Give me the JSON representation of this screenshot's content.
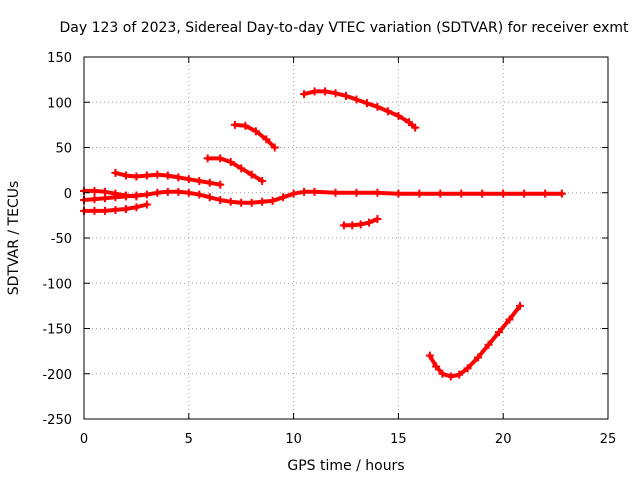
{
  "chart_data": {
    "type": "scatter",
    "title": "Day 123 of 2023, Sidereal Day-to-day VTEC variation (SDTVAR) for receiver exmt",
    "xlabel": "GPS time / hours",
    "ylabel": "SDTVAR / TECUs",
    "xlim": [
      0,
      25
    ],
    "ylim": [
      -250,
      150
    ],
    "x_ticks": [
      "0",
      "5",
      "10",
      "15",
      "20",
      "25"
    ],
    "y_ticks": [
      "150",
      "100",
      "50",
      "0",
      "-50",
      "-100",
      "-150",
      "-200",
      "-250"
    ],
    "x_tick_values": [
      0,
      5,
      10,
      15,
      20,
      25
    ],
    "y_tick_values": [
      150,
      100,
      50,
      0,
      -50,
      -100,
      -150,
      -200,
      -250
    ],
    "grid": true,
    "color": "#ff0000",
    "series": [
      {
        "x": [
          0,
          0.5,
          1,
          1.5,
          2,
          2.5
        ],
        "y": [
          2,
          2,
          1,
          -1,
          -3,
          -4
        ]
      },
      {
        "x": [
          0,
          0.5,
          1,
          1.5,
          2,
          2.5,
          3,
          3.5,
          4,
          4.5,
          5,
          5.5,
          6,
          6.5,
          7,
          7.5,
          8,
          8.5,
          9,
          9.5,
          10,
          10.5,
          11,
          12,
          13,
          14,
          15,
          16,
          17,
          18,
          19,
          20,
          21,
          22,
          22.8
        ],
        "y": [
          -8,
          -7,
          -6,
          -5,
          -4,
          -3,
          -2,
          0,
          1,
          1,
          0,
          -2,
          -5,
          -8,
          -10,
          -11,
          -11,
          -10,
          -9,
          -5,
          -1,
          1,
          1,
          0,
          0,
          0,
          -1,
          -1,
          -1,
          -1,
          -1,
          -1,
          -1,
          -1,
          -1
        ]
      },
      {
        "x": [
          0,
          0.5,
          1,
          1.5,
          2,
          2.5,
          3
        ],
        "y": [
          -20,
          -20,
          -20,
          -19,
          -18,
          -16,
          -13
        ]
      },
      {
        "x": [
          1.5,
          2,
          2.5,
          3,
          3.5,
          4,
          4.5,
          5,
          5.5,
          6,
          6.5
        ],
        "y": [
          22,
          19,
          18,
          19,
          20,
          19,
          17,
          15,
          13,
          11,
          9
        ]
      },
      {
        "x": [
          5.9,
          6.5,
          7,
          7.5,
          8,
          8.5
        ],
        "y": [
          38,
          38,
          34,
          27,
          20,
          13
        ]
      },
      {
        "x": [
          7.2,
          7.7,
          8.2,
          8.7,
          9.1
        ],
        "y": [
          75,
          74,
          68,
          59,
          50
        ]
      },
      {
        "x": [
          10.5,
          11,
          11.5,
          12,
          12.5,
          13,
          13.5,
          14,
          14.5,
          15,
          15.5,
          15.8
        ],
        "y": [
          109,
          112,
          112,
          110,
          107,
          103,
          99,
          95,
          90,
          85,
          78,
          72
        ]
      },
      {
        "x": [
          12.4,
          12.8,
          13.2,
          13.6,
          14
        ],
        "y": [
          -36,
          -36,
          -35,
          -33,
          -29
        ]
      },
      {
        "x": [
          16.5,
          16.8,
          17.1,
          17.5,
          17.9,
          18.3,
          18.8,
          19.3,
          19.8,
          20.3,
          20.8
        ],
        "y": [
          -180,
          -192,
          -200,
          -203,
          -201,
          -194,
          -182,
          -168,
          -154,
          -140,
          -125
        ]
      }
    ]
  }
}
